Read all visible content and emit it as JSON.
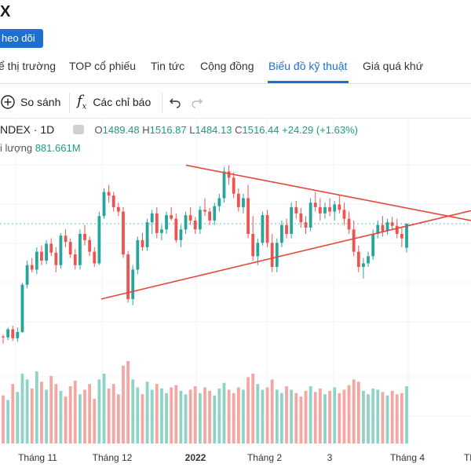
{
  "header": {
    "title": "X",
    "follow_label": "heo dõi"
  },
  "tabs": [
    {
      "label": "ể thị trường"
    },
    {
      "label": "TOP cổ phiếu"
    },
    {
      "label": "Tin tức"
    },
    {
      "label": "Cộng đồng"
    },
    {
      "label": "Biểu đồ kỹ thuật",
      "active": true
    },
    {
      "label": "Giá quá khứ"
    }
  ],
  "toolbar": {
    "compare_label": "So sánh",
    "indicators_label": "Các chỉ báo",
    "fx_glyph": "f",
    "fx_sub": "x"
  },
  "legend": {
    "symbol": "NDEX · 1D",
    "o_label": "O",
    "o_val": "1489.48",
    "h_label": "H",
    "h_val": "1516.87",
    "l_label": "L",
    "l_val": "1484.13",
    "c_label": "C",
    "c_val": "1516.44",
    "change": "+24.29 (+1.63%)",
    "volume_label": "i lượng",
    "volume_val": "881.661M"
  },
  "colors": {
    "up": "#26a69a",
    "down": "#ef5350",
    "accent": "#1f6fd1",
    "trendline": "#e2483d"
  },
  "chart_data": {
    "type": "candlestick",
    "x_ticks": [
      "Tháng 11",
      "Tháng 12",
      "2022",
      "Tháng 2",
      "3",
      "Tháng 4",
      "Th"
    ],
    "candles": [
      [
        1390,
        1392,
        1382,
        1389
      ],
      [
        1389,
        1400,
        1386,
        1398
      ],
      [
        1398,
        1402,
        1385,
        1388
      ],
      [
        1388,
        1400,
        1384,
        1395
      ],
      [
        1395,
        1450,
        1394,
        1448
      ],
      [
        1448,
        1475,
        1444,
        1470
      ],
      [
        1470,
        1478,
        1462,
        1465
      ],
      [
        1465,
        1490,
        1460,
        1485
      ],
      [
        1485,
        1492,
        1470,
        1475
      ],
      [
        1475,
        1498,
        1471,
        1494
      ],
      [
        1494,
        1500,
        1480,
        1484
      ],
      [
        1484,
        1490,
        1462,
        1470
      ],
      [
        1470,
        1506,
        1466,
        1503
      ],
      [
        1503,
        1510,
        1490,
        1496
      ],
      [
        1496,
        1500,
        1478,
        1482
      ],
      [
        1482,
        1488,
        1465,
        1470
      ],
      [
        1470,
        1510,
        1465,
        1505
      ],
      [
        1505,
        1515,
        1492,
        1498
      ],
      [
        1498,
        1502,
        1480,
        1485
      ],
      [
        1485,
        1490,
        1468,
        1472
      ],
      [
        1472,
        1530,
        1470,
        1525
      ],
      [
        1525,
        1556,
        1522,
        1552
      ],
      [
        1552,
        1560,
        1540,
        1548
      ],
      [
        1548,
        1552,
        1530,
        1535
      ],
      [
        1535,
        1540,
        1525,
        1530
      ],
      [
        1530,
        1535,
        1478,
        1482
      ],
      [
        1482,
        1486,
        1428,
        1432
      ],
      [
        1432,
        1470,
        1425,
        1465
      ],
      [
        1465,
        1502,
        1460,
        1498
      ],
      [
        1498,
        1506,
        1486,
        1490
      ],
      [
        1490,
        1522,
        1486,
        1518
      ],
      [
        1518,
        1532,
        1505,
        1528
      ],
      [
        1528,
        1535,
        1500,
        1506
      ],
      [
        1506,
        1515,
        1498,
        1510
      ],
      [
        1510,
        1530,
        1505,
        1526
      ],
      [
        1526,
        1535,
        1520,
        1522
      ],
      [
        1522,
        1528,
        1495,
        1498
      ],
      [
        1498,
        1515,
        1490,
        1510
      ],
      [
        1510,
        1530,
        1505,
        1526
      ],
      [
        1526,
        1535,
        1515,
        1520
      ],
      [
        1520,
        1524,
        1505,
        1510
      ],
      [
        1510,
        1536,
        1505,
        1532
      ],
      [
        1532,
        1545,
        1525,
        1530
      ],
      [
        1530,
        1534,
        1515,
        1520
      ],
      [
        1520,
        1540,
        1515,
        1536
      ],
      [
        1536,
        1550,
        1530,
        1545
      ],
      [
        1545,
        1580,
        1540,
        1575
      ],
      [
        1575,
        1582,
        1560,
        1568
      ],
      [
        1568,
        1574,
        1545,
        1550
      ],
      [
        1550,
        1556,
        1530,
        1535
      ],
      [
        1535,
        1550,
        1528,
        1545
      ],
      [
        1545,
        1560,
        1500,
        1505
      ],
      [
        1505,
        1525,
        1475,
        1480
      ],
      [
        1480,
        1500,
        1470,
        1495
      ],
      [
        1495,
        1530,
        1492,
        1526
      ],
      [
        1526,
        1532,
        1490,
        1495
      ],
      [
        1495,
        1505,
        1462,
        1468
      ],
      [
        1468,
        1500,
        1462,
        1495
      ],
      [
        1495,
        1520,
        1490,
        1515
      ],
      [
        1515,
        1522,
        1500,
        1505
      ],
      [
        1505,
        1540,
        1500,
        1535
      ],
      [
        1535,
        1542,
        1522,
        1528
      ],
      [
        1528,
        1534,
        1512,
        1518
      ],
      [
        1518,
        1525,
        1505,
        1512
      ],
      [
        1512,
        1545,
        1508,
        1540
      ],
      [
        1540,
        1552,
        1530,
        1535
      ],
      [
        1535,
        1545,
        1520,
        1528
      ],
      [
        1528,
        1540,
        1522,
        1535
      ],
      [
        1535,
        1545,
        1525,
        1530
      ],
      [
        1530,
        1542,
        1520,
        1538
      ],
      [
        1538,
        1548,
        1528,
        1532
      ],
      [
        1532,
        1540,
        1515,
        1522
      ],
      [
        1522,
        1530,
        1505,
        1510
      ],
      [
        1510,
        1520,
        1480,
        1485
      ],
      [
        1485,
        1492,
        1462,
        1468
      ],
      [
        1468,
        1478,
        1455,
        1472
      ],
      [
        1472,
        1485,
        1468,
        1480
      ],
      [
        1480,
        1510,
        1476,
        1505
      ],
      [
        1505,
        1520,
        1500,
        1515
      ],
      [
        1515,
        1525,
        1502,
        1508
      ],
      [
        1508,
        1522,
        1504,
        1518
      ],
      [
        1518,
        1524,
        1510,
        1514
      ],
      [
        1514,
        1522,
        1500,
        1505
      ],
      [
        1505,
        1512,
        1490,
        1500
      ],
      [
        1489.48,
        1516.87,
        1484.13,
        1516.44
      ]
    ],
    "volumes": [
      420,
      380,
      520,
      450,
      610,
      560,
      480,
      630,
      540,
      470,
      590,
      520,
      460,
      410,
      500,
      550,
      430,
      470,
      520,
      390,
      560,
      610,
      480,
      520,
      430,
      680,
      720,
      560,
      490,
      430,
      540,
      470,
      520,
      480,
      440,
      490,
      510,
      460,
      430,
      470,
      500,
      440,
      490,
      460,
      420,
      480,
      530,
      470,
      440,
      490,
      470,
      580,
      610,
      520,
      470,
      490,
      560,
      470,
      440,
      500,
      470,
      440,
      410,
      460,
      500,
      450,
      480,
      430,
      460,
      490,
      440,
      470,
      510,
      560,
      540,
      460,
      430,
      480,
      470,
      450,
      420,
      460,
      430,
      440,
      500
    ],
    "y_range": [
      1380,
      1600
    ],
    "trendlines": [
      {
        "from": [
          0.395,
          1582
        ],
        "to": [
          1.0,
          1520
        ]
      },
      {
        "from": [
          0.215,
          1432
        ],
        "to": [
          1.0,
          1531
        ]
      }
    ],
    "last_price": 1516.44
  }
}
